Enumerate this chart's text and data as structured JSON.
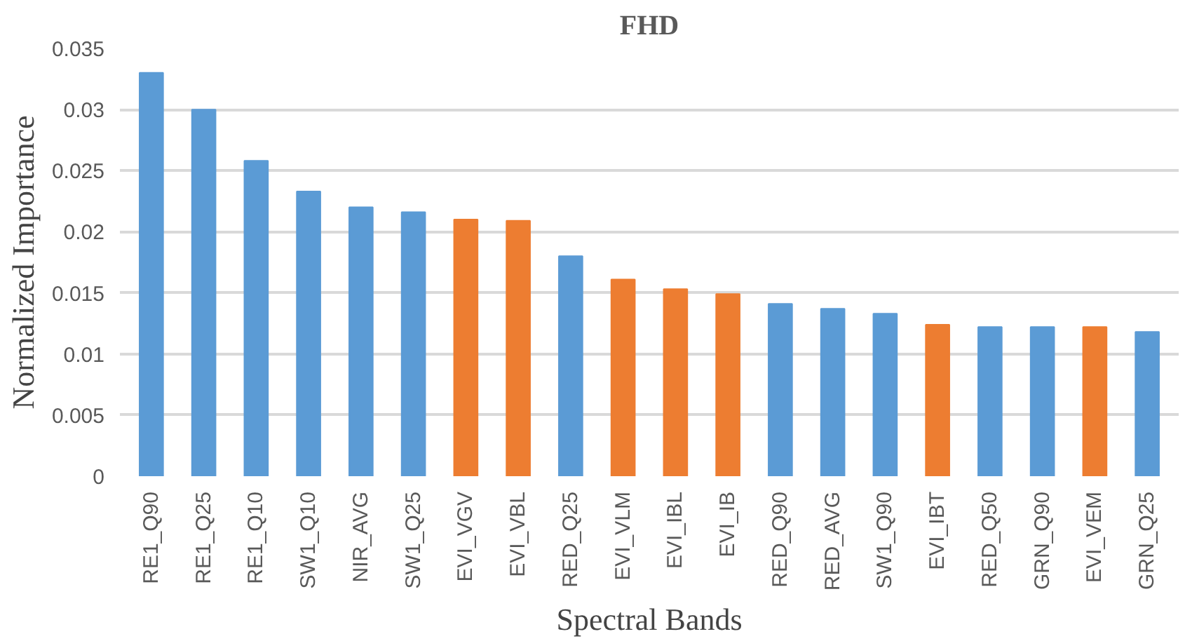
{
  "chart_data": {
    "type": "bar",
    "title": "FHD",
    "xlabel": "Spectral Bands",
    "ylabel": "Normalized Importance",
    "categories": [
      "RE1_Q90",
      "RE1_Q25",
      "RE1_Q10",
      "SW1_Q10",
      "NIR_AVG",
      "SW1_Q25",
      "EVI_VGV",
      "EVI_VBL",
      "RED_Q25",
      "EVI_VLM",
      "EVI_IBL",
      "EVI_IB",
      "RED_Q90",
      "RED_AVG",
      "SW1_Q90",
      "EVI_IBT",
      "RED_Q50",
      "GRN_Q90",
      "EVI_VEM",
      "GRN_Q25"
    ],
    "values": [
      0.033,
      0.03,
      0.0258,
      0.0233,
      0.022,
      0.0216,
      0.021,
      0.0209,
      0.018,
      0.0161,
      0.0153,
      0.0149,
      0.0141,
      0.0137,
      0.0133,
      0.0124,
      0.0122,
      0.0122,
      0.0122,
      0.0118
    ],
    "colors": [
      "#5b9bd5",
      "#5b9bd5",
      "#5b9bd5",
      "#5b9bd5",
      "#5b9bd5",
      "#5b9bd5",
      "#ed7d31",
      "#ed7d31",
      "#5b9bd5",
      "#ed7d31",
      "#ed7d31",
      "#ed7d31",
      "#5b9bd5",
      "#5b9bd5",
      "#5b9bd5",
      "#ed7d31",
      "#5b9bd5",
      "#5b9bd5",
      "#ed7d31",
      "#5b9bd5"
    ],
    "ylim": [
      0,
      0.035
    ],
    "yticks": [
      0,
      0.005,
      0.01,
      0.015,
      0.02,
      0.025,
      0.03,
      0.035
    ],
    "grid": "y"
  }
}
